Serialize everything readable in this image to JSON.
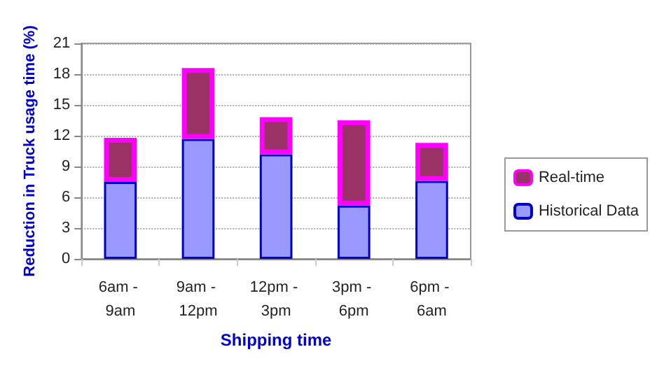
{
  "chart_data": {
    "type": "bar",
    "stacked": true,
    "xlabel": "Shipping time",
    "ylabel": "Reduction in Truck usage time (%)",
    "categories": [
      "6am - 9am",
      "9am - 12pm",
      "12pm - 3pm",
      "3pm - 6pm",
      "6pm - 6am"
    ],
    "series": [
      {
        "name": "Historical Data",
        "color": "#9999ff",
        "values": [
          7.5,
          11.7,
          10.2,
          5.2,
          7.6
        ]
      },
      {
        "name": "Real-time",
        "color": "#993366",
        "values": [
          4.3,
          6.9,
          3.6,
          8.3,
          3.7
        ]
      }
    ],
    "ylim": [
      0,
      21
    ],
    "yticks": [
      0,
      3,
      6,
      9,
      12,
      15,
      18,
      21
    ],
    "grid": "y",
    "legend": "right"
  }
}
